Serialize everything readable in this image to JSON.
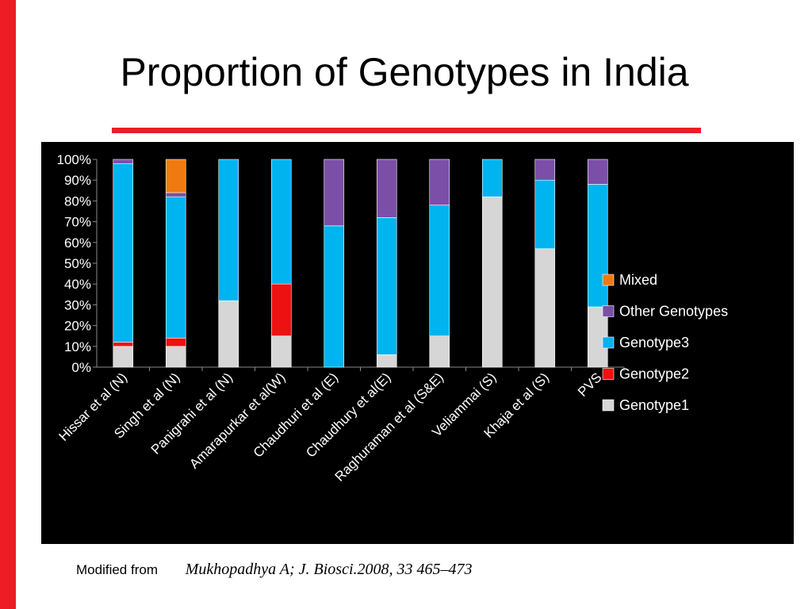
{
  "slide": {
    "title": "Proportion of Genotypes in India",
    "source_label": "Modified from",
    "source_reference": "Mukhopadhya A; J. Biosci.2008, 33 465–473"
  },
  "colors": {
    "accent": "#ee1c25",
    "chart_background": "#000000",
    "Genotype1": "#d6d6d6",
    "Genotype2": "#ee1111",
    "Genotype3": "#00b4f0",
    "Other Genotypes": "#7b4fa8",
    "Mixed": "#f07a10"
  },
  "chart_data": {
    "type": "bar",
    "stacked": true,
    "categories": [
      "Hissar et al (N)",
      "Singh et al (N)",
      "Panigrahi et al (N)",
      "Amarapurkar et al(W)",
      "Chaudhuri et al (E)",
      "Chaudhury et al(E)",
      "Raghuraman et al (S&E)",
      "Veliammai (S)",
      "Khaja et al (S)",
      "PVS"
    ],
    "series": [
      {
        "name": "Genotype1",
        "values": [
          10,
          10,
          32,
          15,
          0,
          6,
          15,
          82,
          57,
          29
        ]
      },
      {
        "name": "Genotype2",
        "values": [
          2,
          4,
          0,
          25,
          0,
          0,
          0,
          0,
          0,
          0
        ]
      },
      {
        "name": "Genotype3",
        "values": [
          86,
          68,
          68,
          60,
          68,
          66,
          63,
          18,
          33,
          59
        ]
      },
      {
        "name": "Other Genotypes",
        "values": [
          2,
          2,
          0,
          0,
          32,
          28,
          22,
          0,
          10,
          12
        ]
      },
      {
        "name": "Mixed",
        "values": [
          0,
          16,
          0,
          0,
          0,
          0,
          0,
          0,
          0,
          0
        ]
      }
    ],
    "ylim": [
      0,
      100
    ],
    "y_tick_labels": [
      "0%",
      "10%",
      "20%",
      "30%",
      "40%",
      "50%",
      "60%",
      "70%",
      "80%",
      "90%",
      "100%"
    ],
    "legend_order": [
      "Mixed",
      "Other Genotypes",
      "Genotype3",
      "Genotype2",
      "Genotype1"
    ],
    "legend_position": "right",
    "grid": false
  }
}
